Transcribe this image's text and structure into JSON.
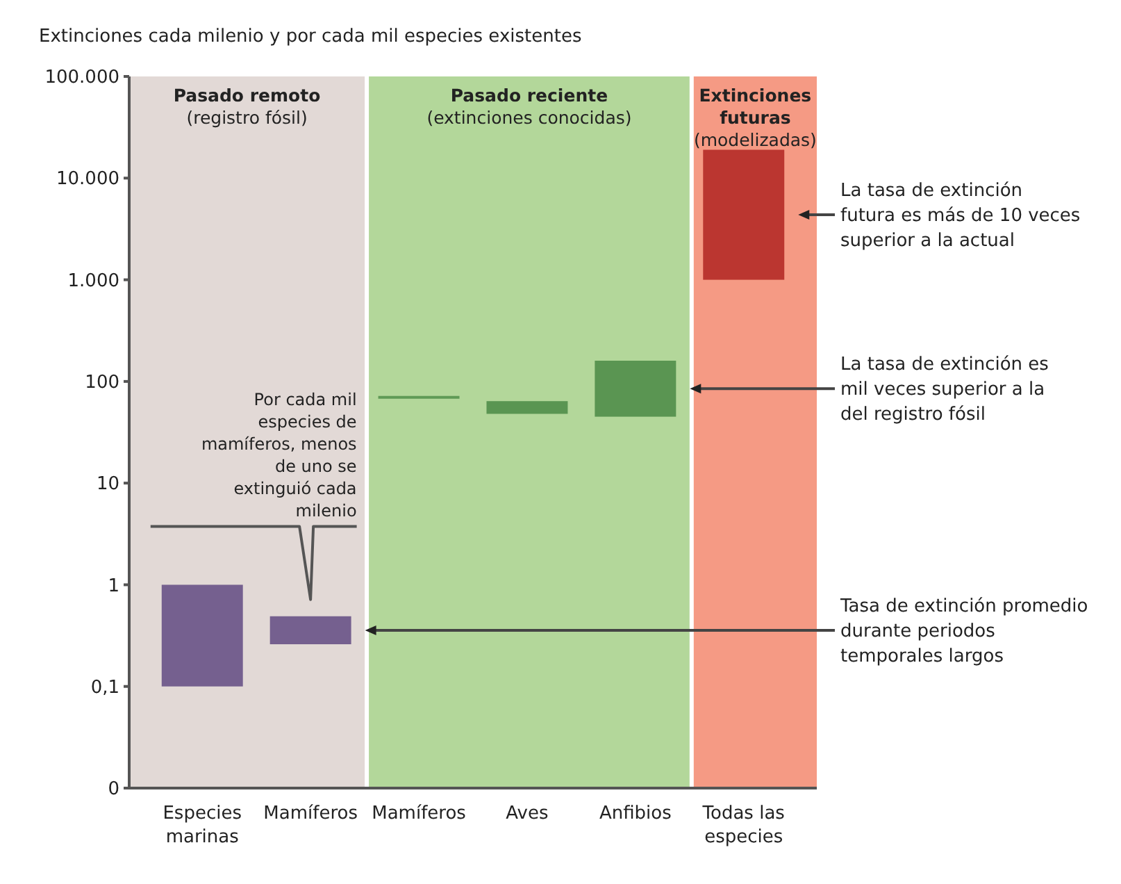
{
  "chart_data": {
    "type": "bar",
    "title": "Extinciones cada milenio y por cada mil especies existentes",
    "categories": [
      "Especies marinas",
      "Mamíferos",
      "Mamíferos",
      "Aves",
      "Anfibios",
      "Todas las especies"
    ],
    "base": [
      0.1,
      0.26,
      68,
      48,
      45,
      1000
    ],
    "values": [
      0.9,
      0.23,
      4,
      16,
      115,
      18000
    ],
    "colors": [
      "#75608f",
      "#75608f",
      "#5f9a55",
      "#5a9552",
      "#5a9552",
      "#bb3630"
    ],
    "log": true,
    "ylim": [
      0.01,
      100000
    ],
    "yticks": [
      {
        "value": 0.01,
        "label": "0"
      },
      {
        "value": 0.1,
        "label": "0,1"
      },
      1,
      10,
      100,
      {
        "value": 1000,
        "label": "1.000"
      },
      {
        "value": 10000,
        "label": "10.000"
      },
      {
        "value": 100000,
        "label": "100.000"
      }
    ],
    "grid": false,
    "annotations": [
      "Pasado remoto\n(registro fósil)",
      "Pasado reciente\n(extinciones conocidas)",
      "Extinciones\nfuturas\n(modelizadas)",
      "La tasa de extinción futura es más de 10 veces superior a la actual",
      "La tasa de extinción es mil veces superior a la del registro fósil",
      "Tasa de extinción promedio durante periodos temporales largos",
      "Por cada mil especies de mamíferos, menos de uno se extinguió cada milenio"
    ]
  }
}
